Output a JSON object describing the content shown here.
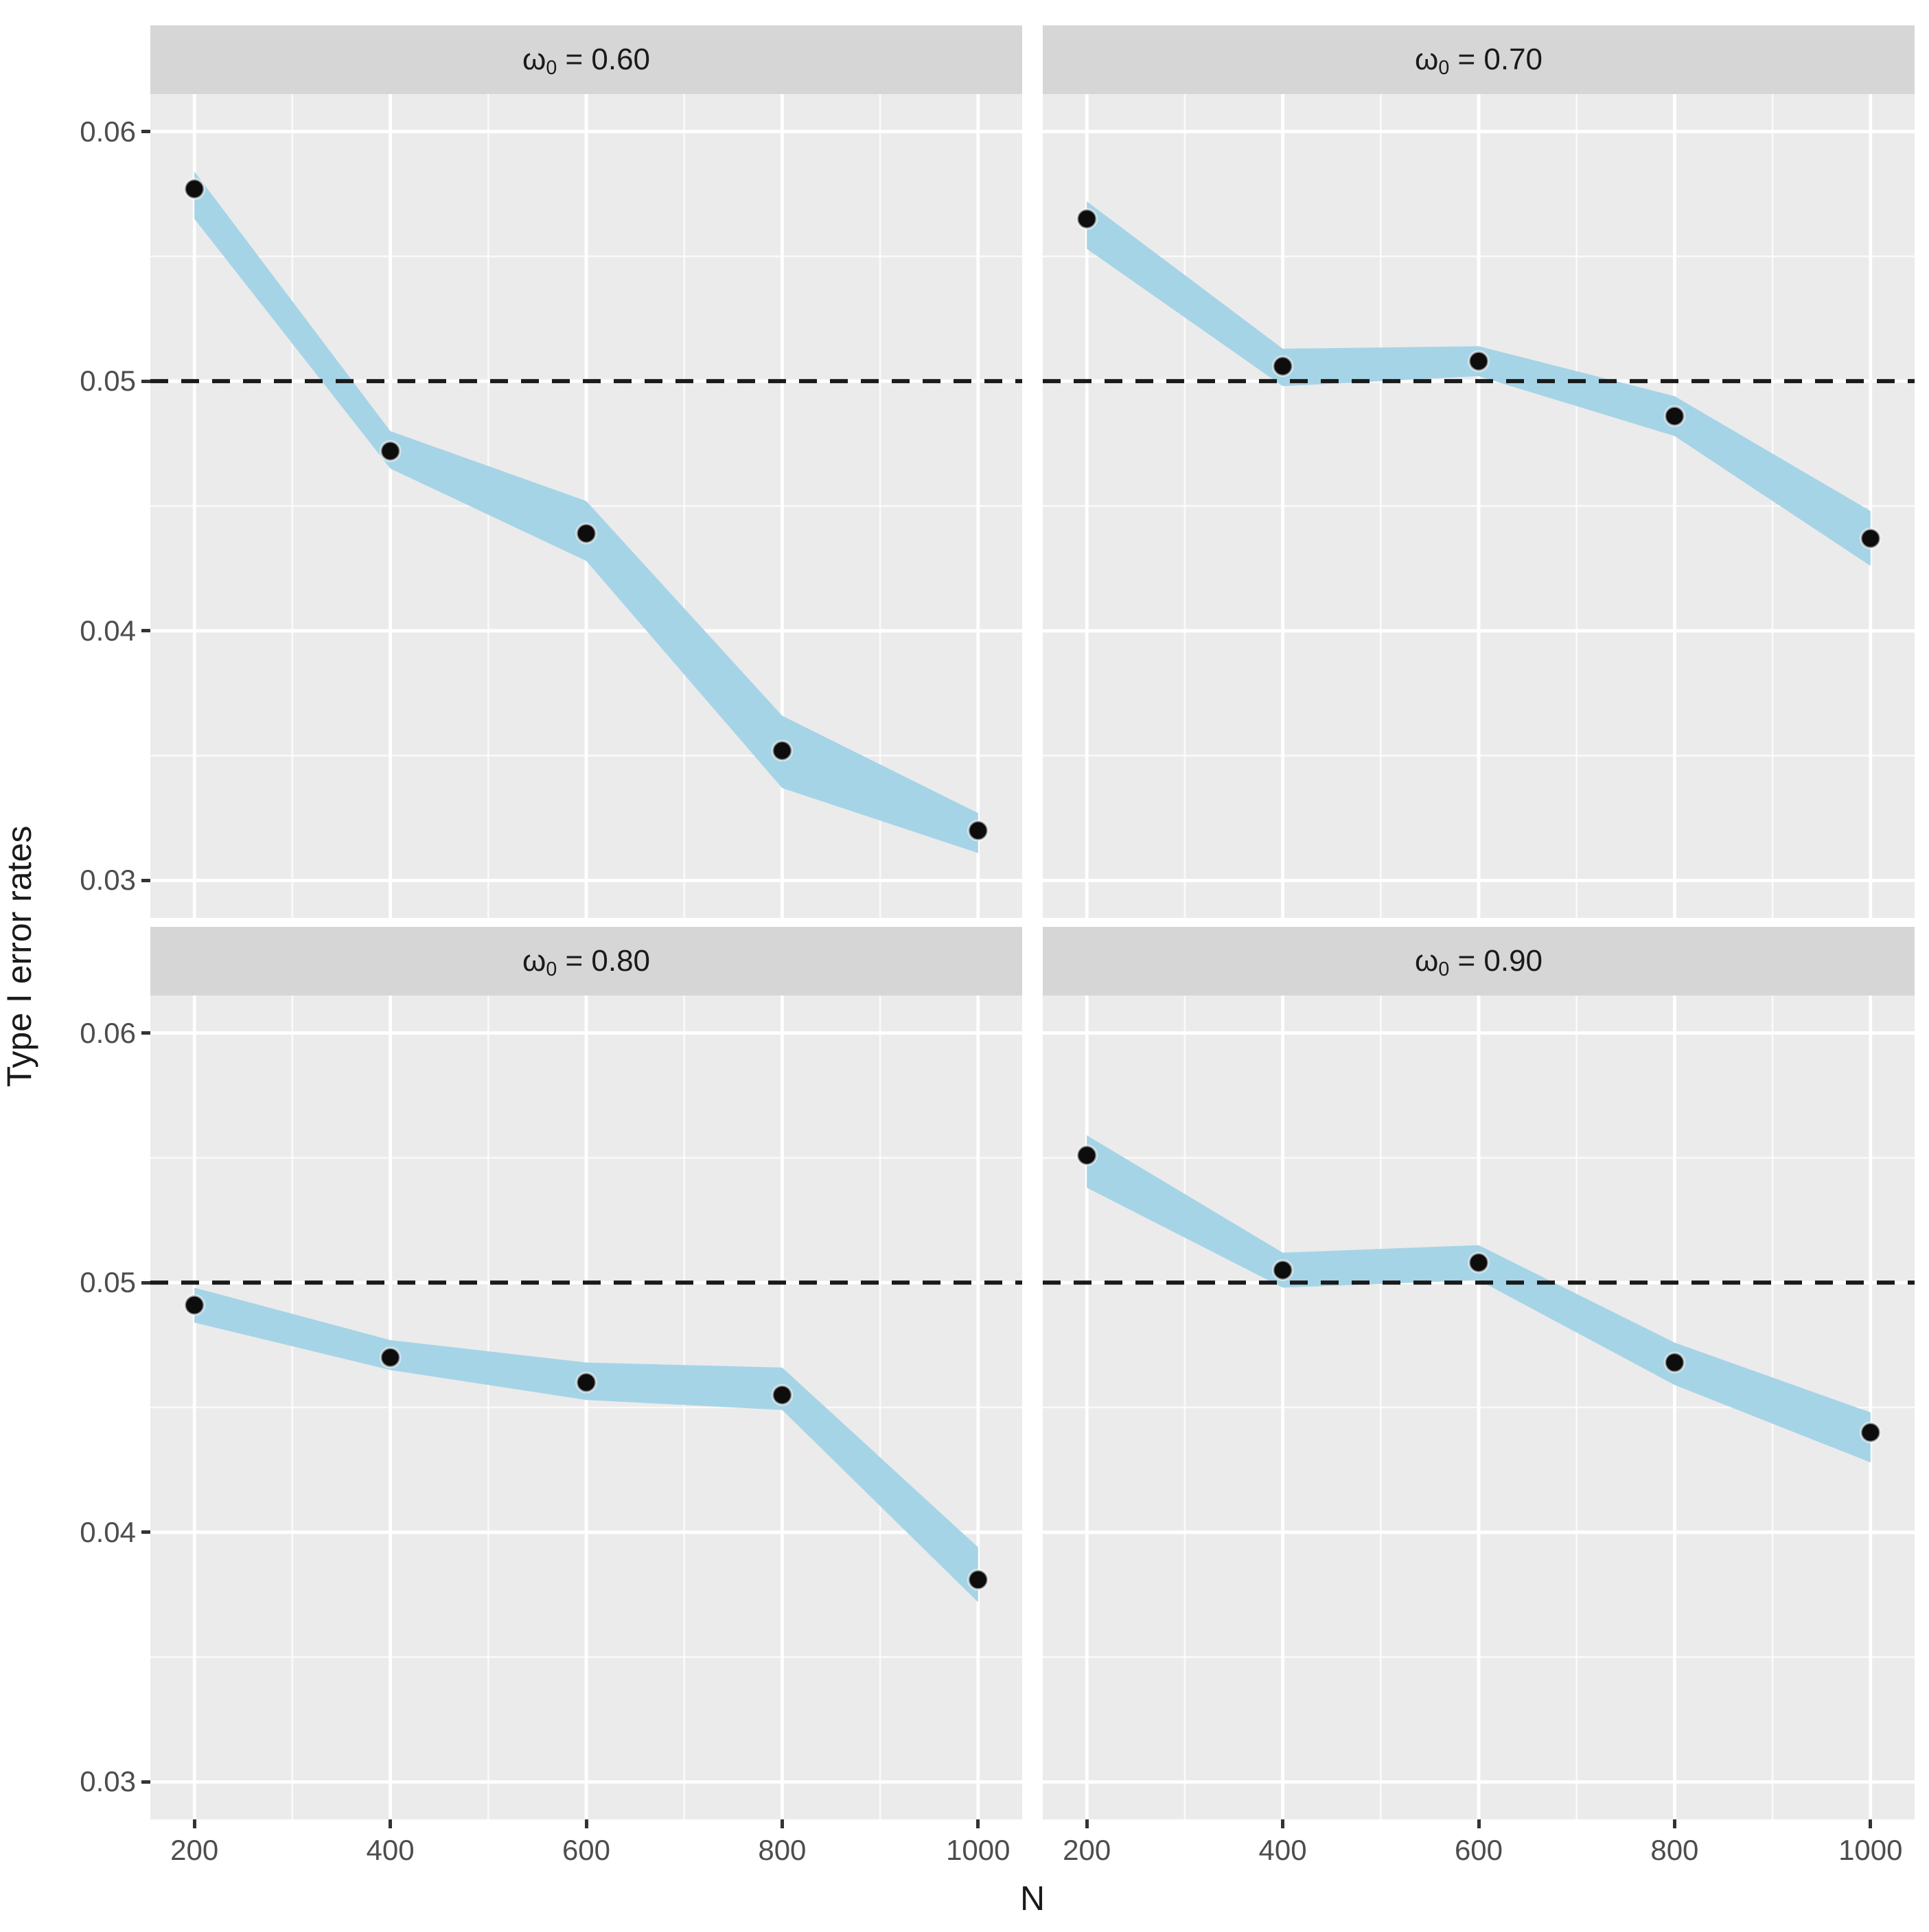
{
  "figure": {
    "xlabel": "N",
    "ylabel": "Type I error rates"
  },
  "axes": {
    "xlim": [
      155,
      1045
    ],
    "ylim": [
      0.0285,
      0.0615
    ],
    "x_ticks": [
      {
        "value": 200,
        "label": "200"
      },
      {
        "value": 400,
        "label": "400"
      },
      {
        "value": 600,
        "label": "600"
      },
      {
        "value": 800,
        "label": "800"
      },
      {
        "value": 1000,
        "label": "1000"
      }
    ],
    "y_ticks": [
      {
        "value": 0.06,
        "label": "0.06"
      },
      {
        "value": 0.05,
        "label": "0.05"
      },
      {
        "value": 0.04,
        "label": "0.04"
      },
      {
        "value": 0.03,
        "label": "0.03"
      }
    ],
    "x_minor": [
      300,
      500,
      700,
      900
    ],
    "y_minor": [
      0.055,
      0.045,
      0.035
    ],
    "grid": "on"
  },
  "chart_data": {
    "type": "line",
    "title": "",
    "xlabel": "N",
    "ylabel": "Type I error rates",
    "x": [
      200,
      400,
      600,
      800,
      1000
    ],
    "reference_line_y": 0.05,
    "legend_position": "none",
    "facets": [
      {
        "label": "ω0 = 0.60",
        "label_prefix": "ω",
        "label_sub": "0",
        "label_rest": " = 0.60",
        "values": [
          0.0577,
          0.0472,
          0.0439,
          0.0352,
          0.032
        ],
        "ribbon_upper": [
          0.0584,
          0.048,
          0.0452,
          0.0366,
          0.0327
        ],
        "ribbon_lower": [
          0.0565,
          0.0465,
          0.0428,
          0.0337,
          0.0311
        ]
      },
      {
        "label": "ω0 = 0.70",
        "label_prefix": "ω",
        "label_sub": "0",
        "label_rest": " = 0.70",
        "values": [
          0.0565,
          0.0506,
          0.0508,
          0.0486,
          0.0437
        ],
        "ribbon_upper": [
          0.0572,
          0.0513,
          0.0514,
          0.0494,
          0.0448
        ],
        "ribbon_lower": [
          0.0553,
          0.0498,
          0.0502,
          0.0478,
          0.0426
        ]
      },
      {
        "label": "ω0 = 0.80",
        "label_prefix": "ω",
        "label_sub": "0",
        "label_rest": " = 0.80",
        "values": [
          0.0491,
          0.047,
          0.046,
          0.0455,
          0.0381
        ],
        "ribbon_upper": [
          0.0498,
          0.0477,
          0.0468,
          0.0466,
          0.0394
        ],
        "ribbon_lower": [
          0.0484,
          0.0465,
          0.0453,
          0.0449,
          0.0372
        ]
      },
      {
        "label": "ω0 = 0.90",
        "label_prefix": "ω",
        "label_sub": "0",
        "label_rest": " = 0.90",
        "values": [
          0.0551,
          0.0505,
          0.0508,
          0.0468,
          0.044
        ],
        "ribbon_upper": [
          0.0559,
          0.0512,
          0.0515,
          0.0476,
          0.0448
        ],
        "ribbon_lower": [
          0.0538,
          0.0498,
          0.0501,
          0.0459,
          0.0428
        ]
      }
    ]
  },
  "colors": {
    "panel_bg": "#EBEBEB",
    "strip_bg": "#D6D6D6",
    "grid_major": "#FFFFFF",
    "grid_minor": "#FFFFFF",
    "ribbon": "#A6D4E7",
    "point": "#0D0D0D",
    "point_halo": "rgba(255,255,255,0.55)",
    "ref_line": "#1A1A1A",
    "tick_label": "#4D4D4D",
    "axis_title": "#1A1A1A"
  }
}
